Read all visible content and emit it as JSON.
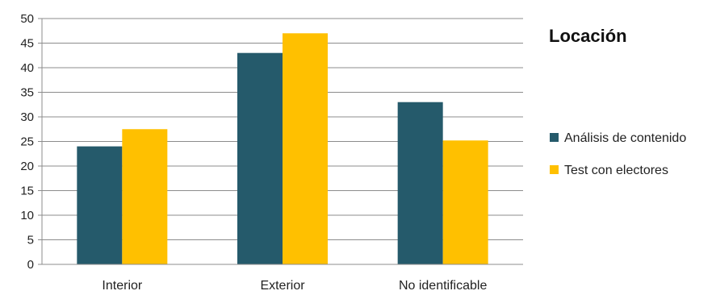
{
  "chart_data": {
    "type": "bar",
    "title": "Locación",
    "categories": [
      "Interior",
      "Exterior",
      "No identificable"
    ],
    "series": [
      {
        "name": "Análisis de contenido",
        "values": [
          24,
          43,
          33
        ],
        "color": "#255A6B"
      },
      {
        "name": "Test con electores",
        "values": [
          27.5,
          47,
          25.2
        ],
        "color": "#FFC000"
      }
    ],
    "ylim": [
      0,
      50
    ],
    "yticks": [
      0,
      5,
      10,
      15,
      20,
      25,
      30,
      35,
      40,
      45,
      50
    ],
    "grid": true,
    "legend": "right",
    "xlabel": "",
    "ylabel": ""
  }
}
